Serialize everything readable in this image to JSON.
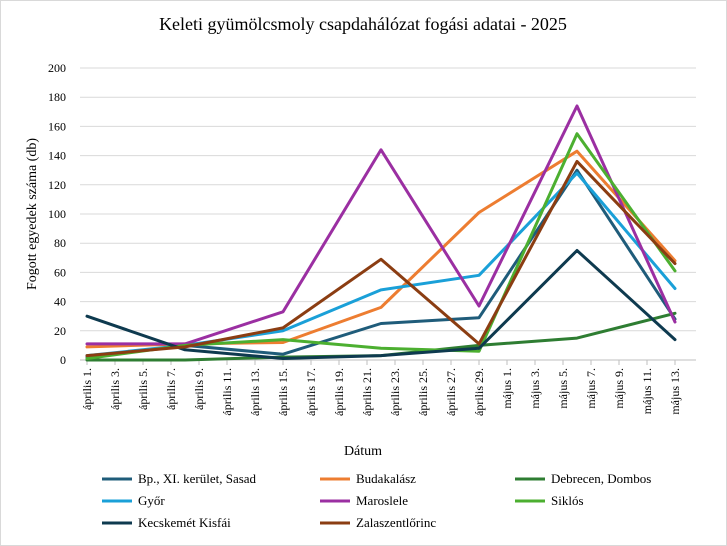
{
  "chart_data": {
    "type": "line",
    "title": "Keleti gyümölcsmoly csapdahálózat fogási adatai - 2025",
    "xlabel": "Dátum",
    "ylabel": "Fogott egyedek száma (db)",
    "ylim": [
      0,
      200
    ],
    "yticks": [
      0,
      20,
      40,
      60,
      80,
      100,
      120,
      140,
      160,
      180,
      200
    ],
    "grid": "horizontal",
    "legend_position": "bottom",
    "x_tick_labels": [
      "április 1.",
      "április 3.",
      "április 5.",
      "április 7.",
      "április 9.",
      "április 11.",
      "április 13.",
      "április 15.",
      "április 17.",
      "április 19.",
      "április 21.",
      "április 23.",
      "április 25.",
      "április 27.",
      "április 29.",
      "május 1.",
      "május 3.",
      "május 5.",
      "május 7.",
      "május 9.",
      "május 11.",
      "május 13."
    ],
    "series": [
      {
        "name": "Bp., XI. kerület, Sasad",
        "color": "#1f5c7a",
        "points": [
          [
            "április 1.",
            2
          ],
          [
            "április 8.",
            10
          ],
          [
            "április 15.",
            4
          ],
          [
            "április 22.",
            25
          ],
          [
            "április 29.",
            29
          ],
          [
            "május 6.",
            130
          ],
          [
            "május 13.",
            28
          ]
        ]
      },
      {
        "name": "Budakalász",
        "color": "#ed7d31",
        "points": [
          [
            "április 1.",
            9
          ],
          [
            "április 8.",
            11
          ],
          [
            "április 15.",
            12
          ],
          [
            "április 22.",
            36
          ],
          [
            "április 29.",
            101
          ],
          [
            "május 6.",
            143
          ],
          [
            "május 13.",
            68
          ]
        ]
      },
      {
        "name": "Debrecen, Dombos",
        "color": "#2e7d32",
        "points": [
          [
            "április 1.",
            0
          ],
          [
            "április 8.",
            0
          ],
          [
            "április 15.",
            2
          ],
          [
            "április 22.",
            3
          ],
          [
            "április 29.",
            10
          ],
          [
            "május 6.",
            15
          ],
          [
            "május 13.",
            32
          ]
        ]
      },
      {
        "name": "Győr",
        "color": "#1aa0d8",
        "points": [
          [
            "április 1.",
            3
          ],
          [
            "április 8.",
            10
          ],
          [
            "április 15.",
            20
          ],
          [
            "április 22.",
            48
          ],
          [
            "április 29.",
            58
          ],
          [
            "május 6.",
            128
          ],
          [
            "május 13.",
            49
          ]
        ]
      },
      {
        "name": "Maroslele",
        "color": "#9b2fa2",
        "points": [
          [
            "április 1.",
            11
          ],
          [
            "április 8.",
            11
          ],
          [
            "április 15.",
            33
          ],
          [
            "április 22.",
            144
          ],
          [
            "április 29.",
            37
          ],
          [
            "május 6.",
            174
          ],
          [
            "május 13.",
            26
          ]
        ]
      },
      {
        "name": "Siklós",
        "color": "#4caf30",
        "points": [
          [
            "április 1.",
            1
          ],
          [
            "április 8.",
            10
          ],
          [
            "április 15.",
            14
          ],
          [
            "április 22.",
            8
          ],
          [
            "április 29.",
            6
          ],
          [
            "május 6.",
            155
          ],
          [
            "május 13.",
            61
          ]
        ]
      },
      {
        "name": "Kecskemét Kisfái",
        "color": "#0e3a4f",
        "points": [
          [
            "április 1.",
            30
          ],
          [
            "április 8.",
            7
          ],
          [
            "április 15.",
            1
          ],
          [
            "április 22.",
            3
          ],
          [
            "április 29.",
            8
          ],
          [
            "május 6.",
            75
          ],
          [
            "május 13.",
            14
          ]
        ]
      },
      {
        "name": "Zalaszentlőrinc",
        "color": "#8b3d12",
        "points": [
          [
            "április 1.",
            3
          ],
          [
            "április 8.",
            9
          ],
          [
            "április 15.",
            22
          ],
          [
            "április 22.",
            69
          ],
          [
            "április 29.",
            11
          ],
          [
            "május 6.",
            136
          ],
          [
            "május 13.",
            66
          ]
        ]
      }
    ]
  }
}
